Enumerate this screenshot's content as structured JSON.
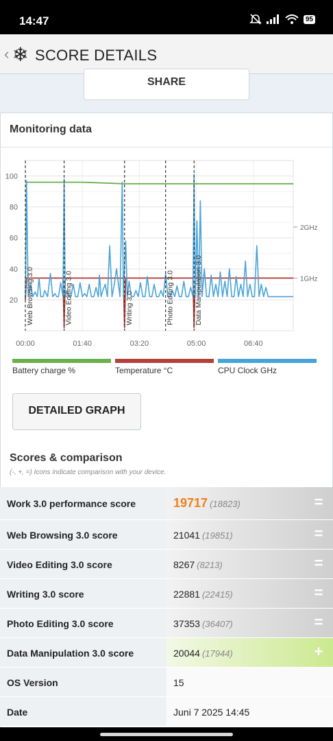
{
  "status_bar": {
    "time": "14:47",
    "battery": "95"
  },
  "app_bar": {
    "back_icon": "chevron-left",
    "logo_icon": "snowflake",
    "title": "SCORE DETAILS"
  },
  "share_button": "SHARE",
  "monitoring": {
    "title": "Monitoring data",
    "detailed_graph_button": "DETAILED GRAPH"
  },
  "chart_data": {
    "type": "line",
    "y_left_ticks": [
      20,
      40,
      60,
      80,
      100
    ],
    "y_right_ticks": [
      "1GHz",
      "2GHz"
    ],
    "x_ticks": [
      "00:00",
      "01:40",
      "03:20",
      "05:00",
      "06:40"
    ],
    "ylim": [
      0,
      110
    ],
    "x_range_seconds": [
      0,
      470
    ],
    "grid": true,
    "markers": [
      {
        "label": "Web Browsing 3.0",
        "t": 0
      },
      {
        "label": "Video Editing 3.0",
        "t": 68
      },
      {
        "label": "Writing 3.0",
        "t": 174
      },
      {
        "label": "Photo Editing 3.0",
        "t": 246
      },
      {
        "label": "Data Manipulation 3.0",
        "t": 296
      }
    ],
    "series": [
      {
        "name": "Battery charge %",
        "color": "#6ab04c",
        "x": [
          0,
          2,
          101,
          172,
          175,
          470
        ],
        "values": [
          20,
          96,
          96,
          95,
          95,
          95
        ]
      },
      {
        "name": "Temperature °C",
        "color": "#b5403a",
        "x": [
          0,
          2,
          66,
          68,
          70,
          172,
          174,
          176,
          294,
          296,
          298,
          470
        ],
        "values": [
          20,
          34,
          34,
          2,
          34,
          34,
          2,
          34,
          34,
          2,
          34,
          34
        ]
      },
      {
        "name": "CPU Clock GHz",
        "color": "#4aa3d8",
        "x": [
          0,
          2,
          5,
          9,
          13,
          17,
          21,
          24,
          27,
          31,
          34,
          39,
          44,
          48,
          52,
          55,
          58,
          62,
          66,
          68,
          70,
          73,
          77,
          80,
          84,
          88,
          92,
          96,
          100,
          104,
          108,
          112,
          116,
          120,
          124,
          128,
          130,
          133,
          136,
          140,
          144,
          148,
          152,
          156,
          160,
          166,
          170,
          172,
          176,
          179,
          182,
          186,
          190,
          194,
          198,
          202,
          206,
          210,
          214,
          218,
          222,
          226,
          230,
          234,
          238,
          242,
          246,
          250,
          254,
          258,
          262,
          266,
          270,
          274,
          278,
          282,
          286,
          290,
          294,
          296,
          298,
          301,
          304,
          307,
          310,
          314,
          318,
          322,
          326,
          330,
          334,
          338,
          342,
          346,
          350,
          354,
          358,
          362,
          366,
          370,
          374,
          378,
          382,
          386,
          390,
          394,
          398,
          402,
          406,
          410,
          414,
          418,
          422,
          426,
          430,
          434,
          438,
          442,
          446,
          450,
          454,
          458,
          462,
          466,
          470
        ],
        "values": [
          22,
          97,
          22,
          30,
          22,
          25,
          22,
          34,
          22,
          22,
          26,
          22,
          37,
          22,
          24,
          22,
          22,
          31,
          22,
          98,
          22,
          26,
          22,
          22,
          30,
          22,
          22,
          31,
          22,
          24,
          22,
          30,
          22,
          22,
          28,
          22,
          36,
          22,
          26,
          30,
          22,
          55,
          22,
          30,
          40,
          22,
          96,
          22,
          58,
          22,
          32,
          22,
          22,
          26,
          22,
          31,
          22,
          22,
          35,
          22,
          22,
          30,
          22,
          22,
          26,
          22,
          37,
          22,
          22,
          26,
          22,
          29,
          22,
          22,
          32,
          22,
          22,
          28,
          22,
          101,
          22,
          71,
          22,
          84,
          22,
          40,
          22,
          22,
          36,
          22,
          30,
          22,
          38,
          22,
          32,
          22,
          40,
          22,
          22,
          35,
          22,
          30,
          22,
          45,
          22,
          30,
          22,
          22,
          55,
          22,
          30,
          22,
          28,
          22,
          22,
          22,
          22,
          22,
          22,
          22,
          22,
          22,
          22,
          22,
          22
        ]
      }
    ]
  },
  "legend": [
    {
      "label": "Battery charge %",
      "color": "#6ab04c"
    },
    {
      "label": "Temperature °C",
      "color": "#b5403a"
    },
    {
      "label": "CPU Clock GHz",
      "color": "#4aa3d8"
    }
  ],
  "scores": {
    "title": "Scores & comparison",
    "note": "(-, +, =) Icons indicate comparison with your device.",
    "rows": [
      {
        "name": "Work 3.0 performance score",
        "value": "19717",
        "compare": "(18823)",
        "indicator": "=",
        "style": "gray"
      },
      {
        "name": "Web Browsing 3.0 score",
        "value": "21041",
        "compare": "(19851)",
        "indicator": "=",
        "style": "gray"
      },
      {
        "name": "Video Editing 3.0 score",
        "value": "8267",
        "compare": "(8213)",
        "indicator": "=",
        "style": "gray"
      },
      {
        "name": "Writing 3.0 score",
        "value": "22881",
        "compare": "(22415)",
        "indicator": "=",
        "style": "gray"
      },
      {
        "name": "Photo Editing 3.0 score",
        "value": "37353",
        "compare": "(36407)",
        "indicator": "=",
        "style": "gray"
      },
      {
        "name": "Data Manipulation 3.0 score",
        "value": "20044",
        "compare": "(17944)",
        "indicator": "+",
        "style": "green"
      },
      {
        "name": "OS Version",
        "value": "15",
        "compare": "",
        "indicator": "",
        "style": "plain"
      },
      {
        "name": "Date",
        "value": "Juni 7 2025 14:45",
        "compare": "",
        "indicator": "",
        "style": "plain"
      }
    ]
  }
}
